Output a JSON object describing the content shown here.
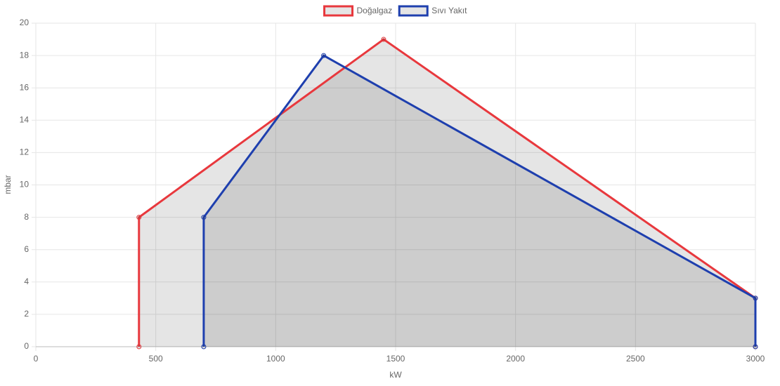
{
  "chart_data": {
    "type": "line",
    "x_label": "kW",
    "y_label": "mbar",
    "xlim": [
      0,
      3000
    ],
    "xticks": [
      0,
      500,
      1000,
      1500,
      2000,
      2500,
      3000
    ],
    "ylim": [
      0,
      20
    ],
    "yticks": [
      0,
      2,
      4,
      6,
      8,
      10,
      12,
      14,
      16,
      18,
      20
    ],
    "grid": true,
    "legend": "top",
    "area_fill": "rgba(0,0,0,0.1)",
    "series": [
      {
        "name": "Doğalgaz",
        "color": "#e8383d",
        "x": [
          430,
          430,
          1450,
          3000,
          3000
        ],
        "values": [
          0,
          8,
          19,
          3,
          0
        ]
      },
      {
        "name": "Sıvı Yakıt",
        "color": "#1e3fae",
        "x": [
          700,
          700,
          1200,
          3000,
          3000
        ],
        "values": [
          0,
          8,
          18,
          3,
          0
        ]
      }
    ]
  }
}
